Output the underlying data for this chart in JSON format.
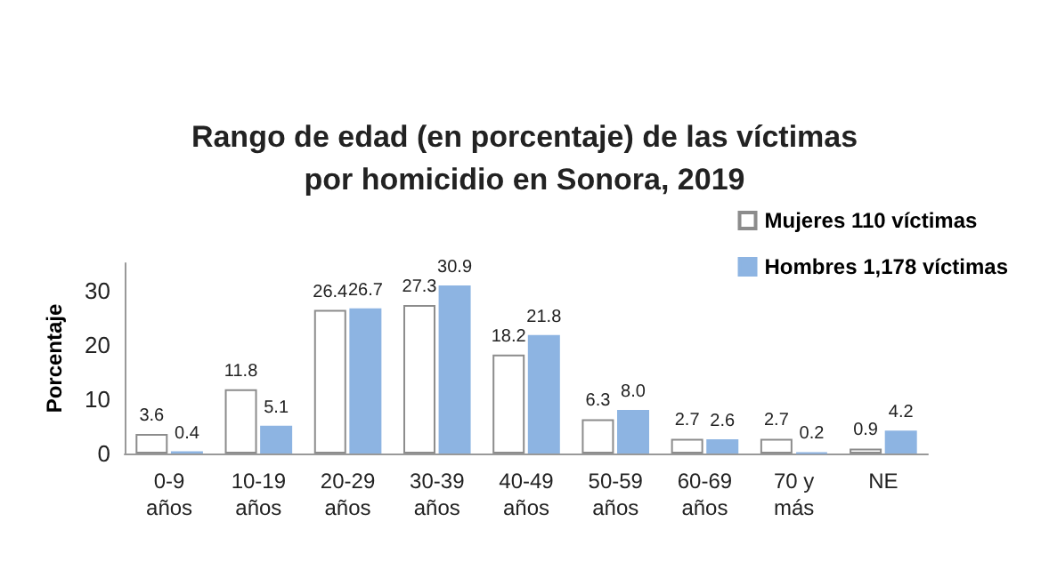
{
  "chart_data": {
    "type": "bar",
    "title": "Rango de edad (en porcentaje) de las víctimas\npor homicidio en Sonora, 2019",
    "ylabel": "Porcentaje",
    "categories": [
      "0-9\naños",
      "10-19\naños",
      "20-29\naños",
      "30-39\naños",
      "40-49\naños",
      "50-59\naños",
      "60-69\naños",
      "70 y\nmás",
      "NE"
    ],
    "series": [
      {
        "name": "Mujeres 110 víctimas",
        "color": "#ffffff",
        "values": [
          3.6,
          11.8,
          26.4,
          27.3,
          18.2,
          6.3,
          2.7,
          2.7,
          0.9
        ],
        "value_labels": [
          "3.6",
          "11.8",
          "26.4",
          "27.3",
          "18.2",
          "6.3",
          "2.7",
          "2.7",
          "0.9"
        ]
      },
      {
        "name": "Hombres 1,178 víctimas",
        "color": "#8db4e2",
        "values": [
          0.4,
          5.1,
          26.7,
          30.9,
          21.8,
          8.0,
          2.6,
          0.2,
          4.2
        ],
        "value_labels": [
          "0.4",
          "5.1",
          "26.7",
          "30.9",
          "21.8",
          "8.0",
          "2.6",
          "0.2",
          "4.2"
        ]
      }
    ],
    "ylim": [
      0,
      35
    ],
    "yticks": [
      0,
      10,
      20,
      30
    ],
    "legend": "top right",
    "grid": false
  }
}
